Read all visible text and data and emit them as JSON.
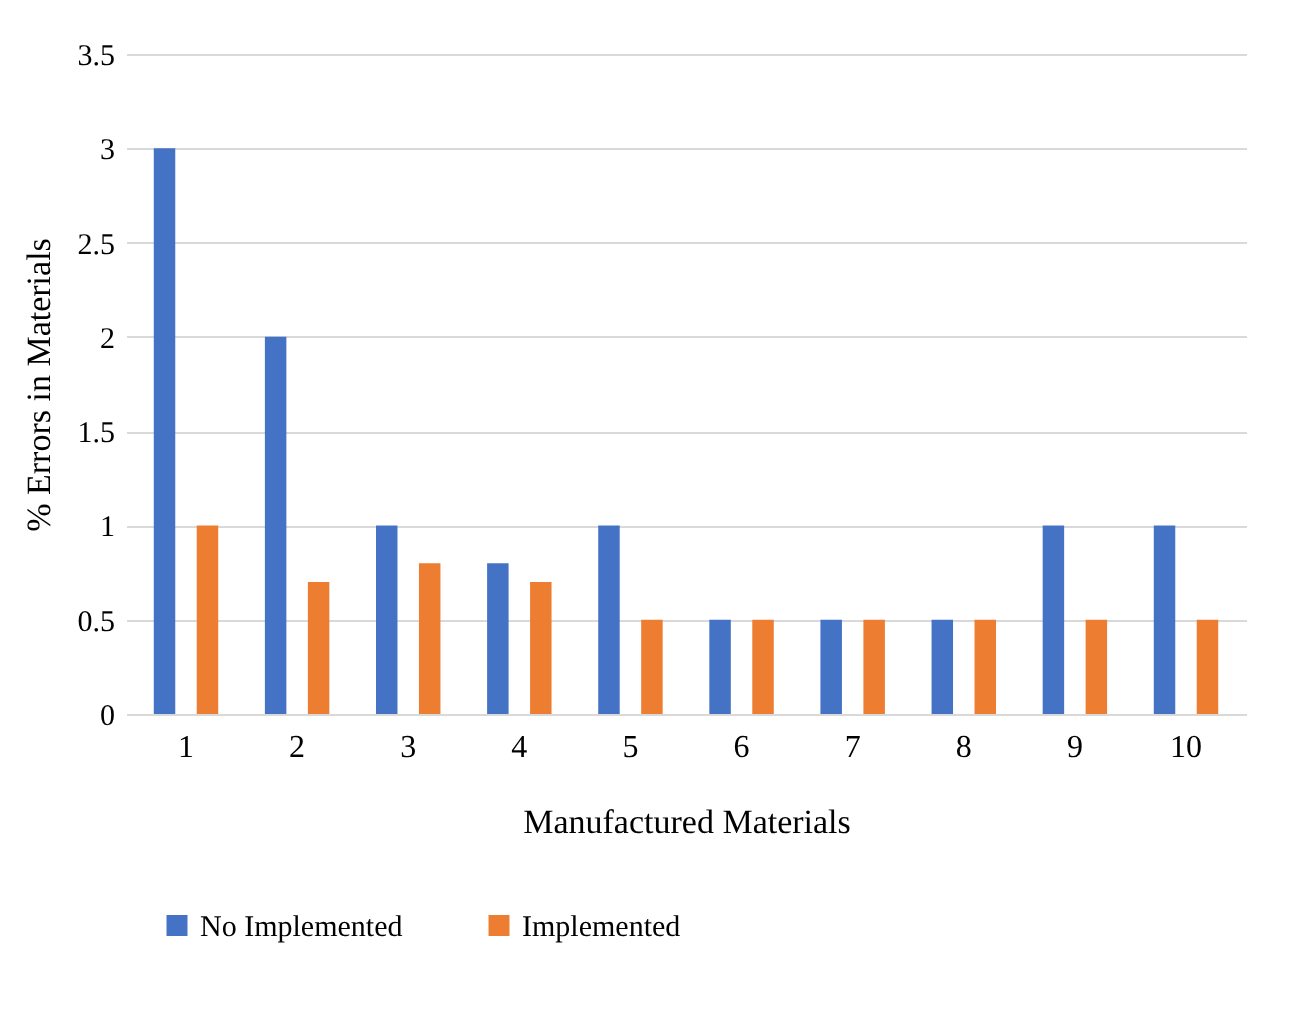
{
  "chart_data": {
    "type": "bar",
    "xlabel": "Manufactured Materials",
    "ylabel": "% Errors in Materials",
    "categories": [
      "1",
      "2",
      "3",
      "4",
      "5",
      "6",
      "7",
      "8",
      "9",
      "10"
    ],
    "series": [
      {
        "name": "No Implemented",
        "color": "#4472c4",
        "values": [
          3,
          2,
          1,
          0.8,
          1,
          0.5,
          0.5,
          0.5,
          1,
          1
        ]
      },
      {
        "name": "Implemented",
        "color": "#ed7d31",
        "values": [
          1,
          0.7,
          0.8,
          0.7,
          0.5,
          0.5,
          0.5,
          0.5,
          0.5,
          0.5
        ]
      }
    ],
    "ylim": [
      0,
      3.5
    ],
    "yticks": [
      0,
      0.5,
      1,
      1.5,
      2,
      2.5,
      3,
      3.5
    ],
    "grid": "y",
    "legend": "bottom"
  }
}
